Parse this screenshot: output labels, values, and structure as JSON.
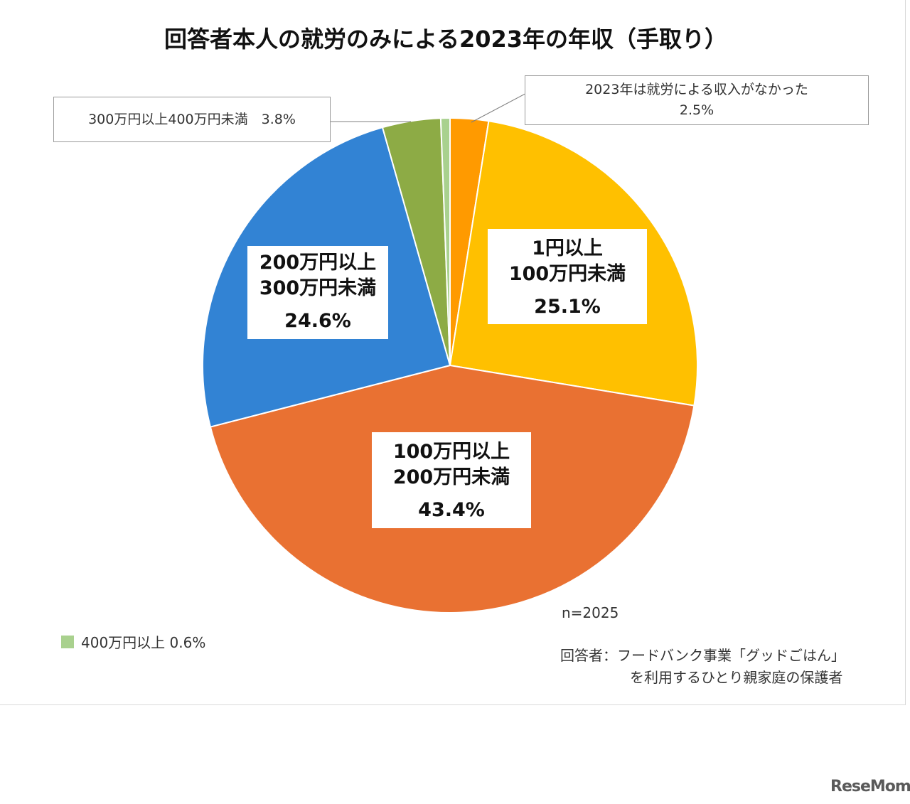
{
  "title": "回答者本人の就労のみによる2023年の年収（手取り）",
  "chart_data": {
    "type": "pie",
    "title": "回答者本人の就労のみによる2023年の年収（手取り）",
    "slices": [
      {
        "label": "2023年は就労による収入がなかった",
        "value": 2.5,
        "value_label": "2.5%",
        "color": "#ff9a00"
      },
      {
        "label": "1円以上 100万円未満",
        "value": 25.1,
        "value_label": "25.1%",
        "color": "#ffc000"
      },
      {
        "label": "100万円以上 200万円未満",
        "value": 43.4,
        "value_label": "43.4%",
        "color": "#e97132"
      },
      {
        "label": "200万円以上 300万円未満",
        "value": 24.6,
        "value_label": "24.6%",
        "color": "#3283d4"
      },
      {
        "label": "300万円以上400万円未満",
        "value": 3.8,
        "value_label": "3.8%",
        "color": "#8dab45"
      },
      {
        "label": "400万円以上",
        "value": 0.6,
        "value_label": "0.6%",
        "color": "#a9d18e"
      }
    ]
  },
  "labels": {
    "none": {
      "line1": "2023年は就労による収入がなかった",
      "pct": "2.5%"
    },
    "r1to100": {
      "line1": "1円以上",
      "line2": "100万円未満",
      "pct": "25.1%"
    },
    "r100to200": {
      "line1": "100万円以上",
      "line2": "200万円未満",
      "pct": "43.4%"
    },
    "r200to300": {
      "line1": "200万円以上",
      "line2": "300万円未満",
      "pct": "24.6%"
    },
    "r300to400": {
      "text": "300万円以上400万円未満　3.8%"
    }
  },
  "legend": {
    "text": "400万円以上  0.6%",
    "color": "#a9d18e"
  },
  "n_label": "n=2025",
  "respondent": {
    "line1": "回答者：フードバンク事業「グッドごはん」",
    "line2": "を利用するひとり親家庭の保護者"
  },
  "logo": "ReseMom"
}
